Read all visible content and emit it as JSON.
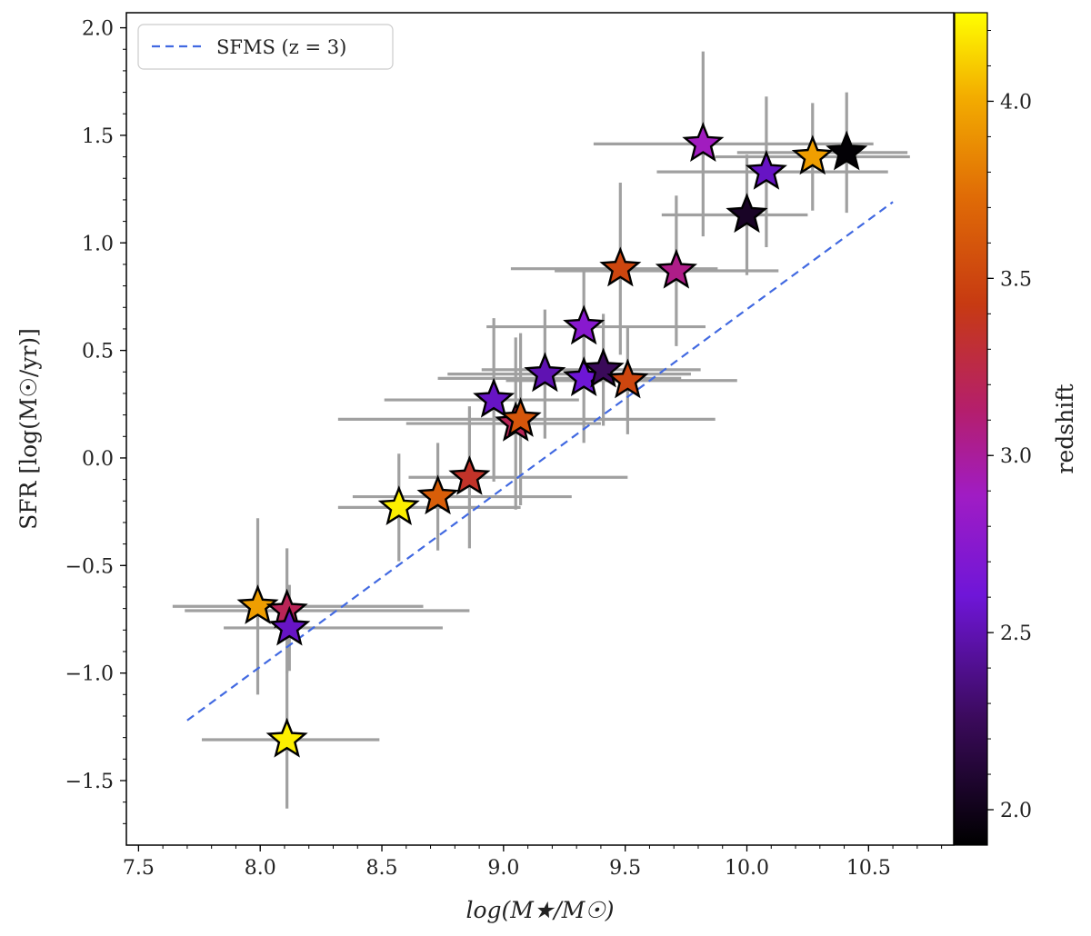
{
  "chart_data": {
    "type": "scatter",
    "title": "",
    "xlabel": "log(M★/M☉)",
    "ylabel": "SFR [log(M☉/yr)]",
    "xlim": [
      7.45,
      10.85
    ],
    "ylim": [
      -1.8,
      2.07
    ],
    "xticks": [
      7.5,
      8.0,
      8.5,
      9.0,
      9.5,
      10.0,
      10.5
    ],
    "xtick_labels": [
      "7.5",
      "8.0",
      "8.5",
      "9.0",
      "9.5",
      "10.0",
      "10.5"
    ],
    "yticks": [
      -1.5,
      -1.0,
      -0.5,
      0.0,
      0.5,
      1.0,
      1.5,
      2.0
    ],
    "ytick_labels": [
      "−1.5",
      "−1.0",
      "−0.5",
      "0.0",
      "0.5",
      "1.0",
      "1.5",
      "2.0"
    ],
    "legend": {
      "position": "top-left",
      "entries": [
        "SFMS (z = 3)"
      ]
    },
    "sfms_line": {
      "x": [
        7.7,
        10.6
      ],
      "y": [
        -1.22,
        1.19
      ],
      "color": "#4169e1"
    },
    "colorbar": {
      "label": "redshift",
      "range": [
        1.9,
        4.25
      ],
      "ticks": [
        2.0,
        2.5,
        3.0,
        3.5,
        4.0
      ],
      "tick_labels": [
        "2.0",
        "2.5",
        "3.0",
        "3.5",
        "4.0"
      ],
      "colormap": "gnuplot"
    },
    "points": [
      {
        "x": 7.99,
        "y": -0.69,
        "xerr": [
          0.35,
          0.68
        ],
        "yerr": [
          0.41,
          0.41
        ],
        "z": 3.95
      },
      {
        "x": 8.11,
        "y": -0.71,
        "xerr": [
          0.42,
          0.75
        ],
        "yerr": [
          0.29,
          0.29
        ],
        "z": 3.2
      },
      {
        "x": 8.12,
        "y": -0.79,
        "xerr": [
          0.27,
          0.63
        ],
        "yerr": [
          0.2,
          0.2
        ],
        "z": 2.55
      },
      {
        "x": 8.11,
        "y": -1.31,
        "xerr": [
          0.35,
          0.38
        ],
        "yerr": [
          0.32,
          0.32
        ],
        "z": 4.2
      },
      {
        "x": 8.57,
        "y": -0.23,
        "xerr": [
          0.25,
          0.5
        ],
        "yerr": [
          0.25,
          0.25
        ],
        "z": 4.2
      },
      {
        "x": 8.73,
        "y": -0.18,
        "xerr": [
          0.35,
          0.55
        ],
        "yerr": [
          0.25,
          0.25
        ],
        "z": 3.65
      },
      {
        "x": 8.86,
        "y": -0.09,
        "xerr": [
          0.25,
          0.65
        ],
        "yerr": [
          0.33,
          0.33
        ],
        "z": 3.35
      },
      {
        "x": 8.96,
        "y": 0.27,
        "xerr": [
          0.45,
          0.35
        ],
        "yerr": [
          0.38,
          0.38
        ],
        "z": 2.55
      },
      {
        "x": 9.05,
        "y": 0.16,
        "xerr": [
          0.45,
          0.35
        ],
        "yerr": [
          0.4,
          0.4
        ],
        "z": 3.2
      },
      {
        "x": 9.07,
        "y": 0.18,
        "xerr": [
          0.75,
          0.8
        ],
        "yerr": [
          0.4,
          0.4
        ],
        "z": 3.6
      },
      {
        "x": 9.17,
        "y": 0.39,
        "xerr": [
          0.4,
          0.6
        ],
        "yerr": [
          0.3,
          0.3
        ],
        "z": 2.5
      },
      {
        "x": 9.33,
        "y": 0.61,
        "xerr": [
          0.4,
          0.5
        ],
        "yerr": [
          0.27,
          0.27
        ],
        "z": 2.75
      },
      {
        "x": 9.33,
        "y": 0.37,
        "xerr": [
          0.6,
          0.4
        ],
        "yerr": [
          0.3,
          0.3
        ],
        "z": 2.6
      },
      {
        "x": 9.41,
        "y": 0.41,
        "xerr": [
          0.5,
          0.4
        ],
        "yerr": [
          0.26,
          0.26
        ],
        "z": 2.25
      },
      {
        "x": 9.51,
        "y": 0.36,
        "xerr": [
          0.5,
          0.45
        ],
        "yerr": [
          0.25,
          0.25
        ],
        "z": 3.5
      },
      {
        "x": 9.48,
        "y": 0.88,
        "xerr": [
          0.45,
          0.4
        ],
        "yerr": [
          0.4,
          0.4
        ],
        "z": 3.5
      },
      {
        "x": 9.71,
        "y": 0.87,
        "xerr": [
          0.5,
          0.42
        ],
        "yerr": [
          0.35,
          0.35
        ],
        "z": 3.05
      },
      {
        "x": 9.82,
        "y": 1.46,
        "xerr": [
          0.45,
          0.7
        ],
        "yerr": [
          0.43,
          0.43
        ],
        "z": 2.9
      },
      {
        "x": 10.0,
        "y": 1.13,
        "xerr": [
          0.35,
          0.25
        ],
        "yerr": [
          0.28,
          0.28
        ],
        "z": 2.05
      },
      {
        "x": 10.08,
        "y": 1.33,
        "xerr": [
          0.45,
          0.5
        ],
        "yerr": [
          0.35,
          0.35
        ],
        "z": 2.55
      },
      {
        "x": 10.27,
        "y": 1.4,
        "xerr": [
          0.4,
          0.4
        ],
        "yerr": [
          0.25,
          0.25
        ],
        "z": 3.95
      },
      {
        "x": 10.41,
        "y": 1.42,
        "xerr": [
          0.45,
          0.25
        ],
        "yerr": [
          0.28,
          0.28
        ],
        "z": 1.92
      }
    ]
  }
}
